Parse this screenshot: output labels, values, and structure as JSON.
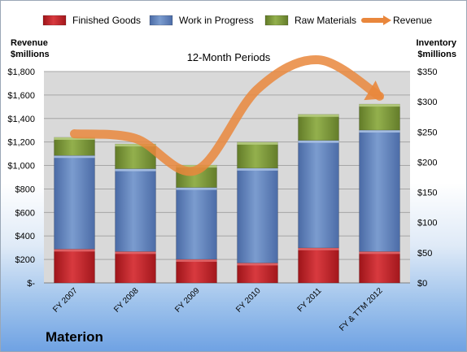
{
  "company": "Materion",
  "chart_data": {
    "type": "bar",
    "stacked": true,
    "title": "12-Month Periods",
    "categories": [
      "FY 2007",
      "FY 2008",
      "FY 2009",
      "FY 2010",
      "FY 2011",
      "FY & TTM 2012"
    ],
    "left_axis": {
      "label_line1": "Revenue",
      "label_line2": "$millions",
      "ylim": [
        0,
        1800
      ],
      "ticks": [
        "$-",
        "$200",
        "$400",
        "$600",
        "$800",
        "$1,000",
        "$1,200",
        "$1,400",
        "$1,600",
        "$1,800"
      ]
    },
    "right_axis": {
      "label_line1": "Inventory",
      "label_line2": "$millions",
      "ylim": [
        0,
        350
      ],
      "ticks": [
        "$0",
        "$50",
        "$100",
        "$150",
        "$200",
        "$250",
        "$300",
        "$350"
      ]
    },
    "series": [
      {
        "name": "Finished Goods",
        "axis": "right",
        "color": "#c0242a",
        "values": [
          56,
          52,
          39,
          33,
          58,
          52
        ]
      },
      {
        "name": "Work in Progress",
        "axis": "right",
        "color": "#6689c2",
        "values": [
          155,
          137,
          119,
          157,
          178,
          201
        ]
      },
      {
        "name": "Raw Materials",
        "axis": "right",
        "color": "#7e9a3d",
        "values": [
          30,
          41,
          37,
          43,
          43,
          43
        ]
      },
      {
        "name": "Revenue",
        "axis": "left",
        "color": "#e9873c",
        "type": "line",
        "values": [
          1270,
          1230,
          960,
          1650,
          1900,
          1590
        ]
      }
    ],
    "grid": true,
    "legend": "top"
  }
}
